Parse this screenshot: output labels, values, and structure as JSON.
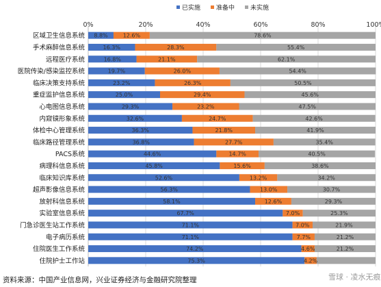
{
  "colors": {
    "implemented": "#4472C4",
    "preparing": "#ED7D31",
    "not_implemented": "#A5A5A5"
  },
  "chart_data": {
    "type": "bar",
    "orientation": "horizontal",
    "stacked": true,
    "legend_position": "top-right",
    "grid": true,
    "xlim": [
      0,
      100
    ],
    "x_ticks": [
      "0%",
      "20%",
      "40%",
      "60%",
      "80%",
      "100%"
    ],
    "categories": [
      "区域卫生信息系统",
      "手术麻醉信息系统",
      "远程医疗系统",
      "医院传染/感染监控系统",
      "临床决策支持系统",
      "重症监护信息系统",
      "心电图信息系统",
      "内窥镜形象系统",
      "体检中心管理系统",
      "临床路径管理系统",
      "PACS系统",
      "病理科信息系统",
      "临床知识库系统",
      "超声影像信息系统",
      "放射科信息系统",
      "实验室信息系统",
      "门急诊医生站工作系统",
      "电子病历系统",
      "住院医生工作系统",
      "住院护士工作站"
    ],
    "series": [
      {
        "name": "已实施",
        "color": "#4472C4",
        "values": [
          8.8,
          16.3,
          16.8,
          19.7,
          23.2,
          25.0,
          29.3,
          32.6,
          36.3,
          36.8,
          44.6,
          45.8,
          52.6,
          56.3,
          58.1,
          67.7,
          71.1,
          71.1,
          74.2,
          75.3
        ],
        "labels": [
          "8.8%",
          "16.3%",
          "16.8%",
          "19.7%",
          "23.2%",
          "25.0%",
          "29.3%",
          "32.6%",
          "36.3%",
          "36.8%",
          "44.6%",
          "45.8%",
          "52.6%",
          "56.3%",
          "58.1%",
          "67.7%",
          "71.1%",
          "71.1%",
          "74.2%",
          "75.3%"
        ]
      },
      {
        "name": "准备中",
        "color": "#ED7D31",
        "values": [
          12.6,
          28.3,
          21.1,
          26.0,
          26.3,
          29.4,
          23.2,
          24.7,
          21.8,
          27.7,
          14.7,
          15.6,
          13.2,
          13.0,
          12.6,
          7.0,
          7.0,
          7.7,
          4.6,
          4.2
        ],
        "labels": [
          "12.6%",
          "28.3%",
          "21.1%",
          "26.0%",
          "26.3%",
          "29.4%",
          "23.2%",
          "24.7%",
          "21.8%",
          "27.7%",
          "14.7%",
          "15.6%",
          "13.2%",
          "13.0%",
          "12.6%",
          "7.0%",
          "7.0%",
          "7.7%",
          "4.6%",
          "4.2%"
        ]
      },
      {
        "name": "未实施",
        "color": "#A5A5A5",
        "values": [
          78.6,
          55.4,
          62.1,
          54.4,
          50.5,
          45.6,
          47.5,
          42.6,
          41.9,
          35.4,
          40.5,
          38.6,
          34.2,
          30.7,
          29.3,
          25.3,
          21.9,
          21.2,
          21.2,
          20.5
        ],
        "labels": [
          "78.6%",
          "55.4%",
          "62.1%",
          "54.4%",
          "50.5%",
          "45.6%",
          "47.5%",
          "42.6%",
          "41.9%",
          "35.4%",
          "40.5%",
          "38.6%",
          "34.2%",
          "30.7%",
          "29.3%",
          "25.3%",
          "21.9%",
          "21.2%",
          "21.2%",
          ""
        ]
      }
    ]
  },
  "footer": {
    "source": "资料来源：中国产业信息网，兴业证券经济与金融研究院整理",
    "watermark": "雪球 · 凌水无痕"
  }
}
